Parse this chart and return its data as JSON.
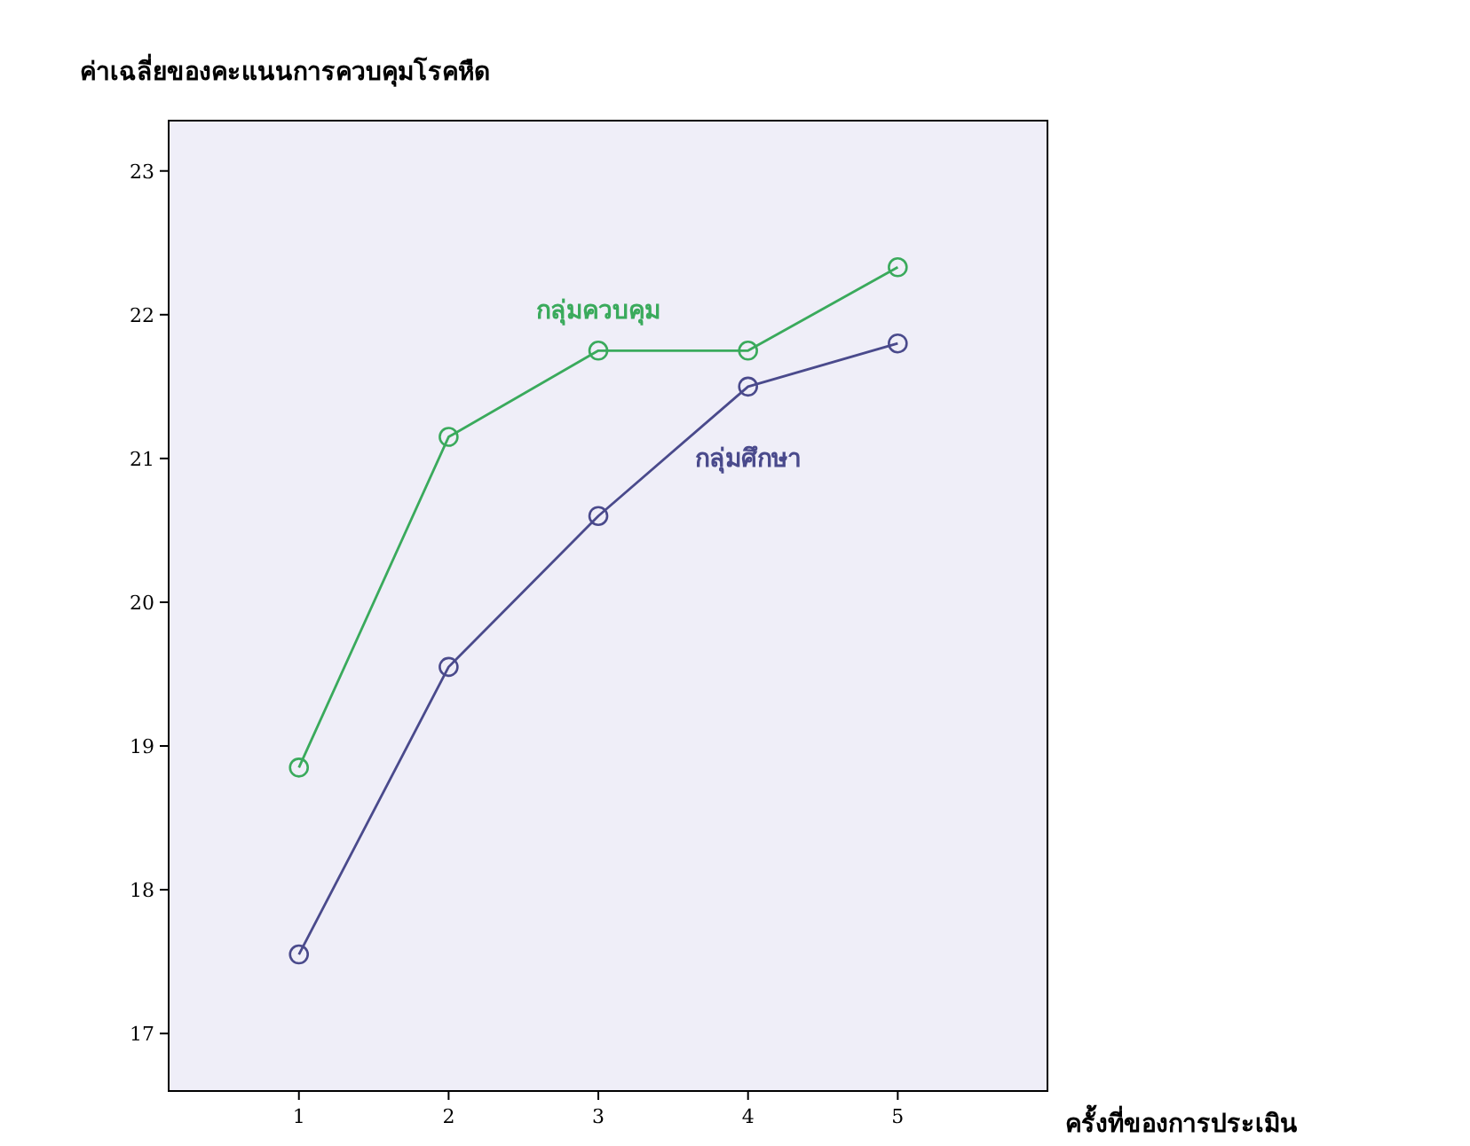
{
  "chart_data": {
    "type": "line",
    "ylabel": "ค่าเฉลี่ยของคะแนนการควบคุมโรคหืด",
    "xlabel": "ครั้งที่ของการประเมิน",
    "x": [
      1,
      2,
      3,
      4,
      5
    ],
    "series": [
      {
        "name": "กลุ่มควบคุม",
        "color": "#3aaa5c",
        "values": [
          18.85,
          21.15,
          21.75,
          21.75,
          22.33
        ]
      },
      {
        "name": "กลุ่มศึกษา",
        "color": "#4a4a8c",
        "values": [
          17.55,
          19.55,
          20.6,
          21.5,
          21.8
        ]
      }
    ],
    "xlim": [
      0.13,
      6.0
    ],
    "xticks": [
      1,
      2,
      3,
      4,
      5
    ],
    "ylim": [
      16.6,
      23.35
    ],
    "yticks": [
      17,
      18,
      19,
      20,
      21,
      22,
      23
    ],
    "marker": "circle",
    "grid": false
  }
}
